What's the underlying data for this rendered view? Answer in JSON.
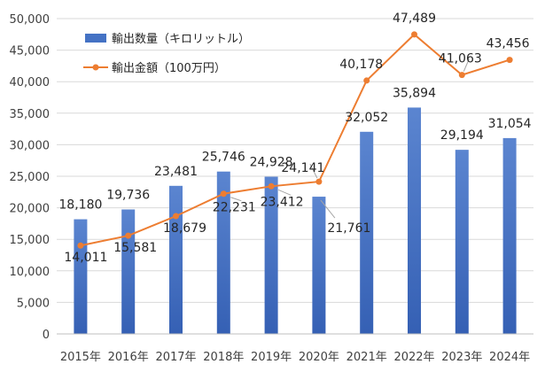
{
  "chart_data": {
    "type": "bar",
    "title": "",
    "xlabel": "",
    "ylabel": "",
    "categories": [
      "2015年",
      "2016年",
      "2017年",
      "2018年",
      "2019年",
      "2020年",
      "2021年",
      "2022年",
      "2023年",
      "2024年"
    ],
    "ylim": [
      0,
      50000
    ],
    "yticks": [
      "0",
      "5,000",
      "10,000",
      "15,000",
      "20,000",
      "25,000",
      "30,000",
      "35,000",
      "40,000",
      "45,000",
      "50,000"
    ],
    "grid": true,
    "legend_position": "top-left",
    "series": [
      {
        "name": "輸出数量（キロリットル）",
        "type": "bar",
        "color": "#4472C4",
        "values": [
          18180,
          19736,
          23481,
          25746,
          24928,
          21761,
          32052,
          35894,
          29194,
          31054
        ],
        "labels": [
          "18,180",
          "19,736",
          "23,481",
          "25,746",
          "24,928",
          "21,761",
          "32,052",
          "35,894",
          "29,194",
          "31,054"
        ]
      },
      {
        "name": "輸出金額（100万円）",
        "type": "line",
        "color": "#ED7D31",
        "values": [
          14011,
          15581,
          18679,
          22231,
          23412,
          24141,
          40178,
          47489,
          41063,
          43456
        ],
        "labels": [
          "14,011",
          "15,581",
          "18,679",
          "22,231",
          "23,412",
          "24,141",
          "40,178",
          "47,489",
          "41,063",
          "43,456"
        ]
      }
    ]
  }
}
